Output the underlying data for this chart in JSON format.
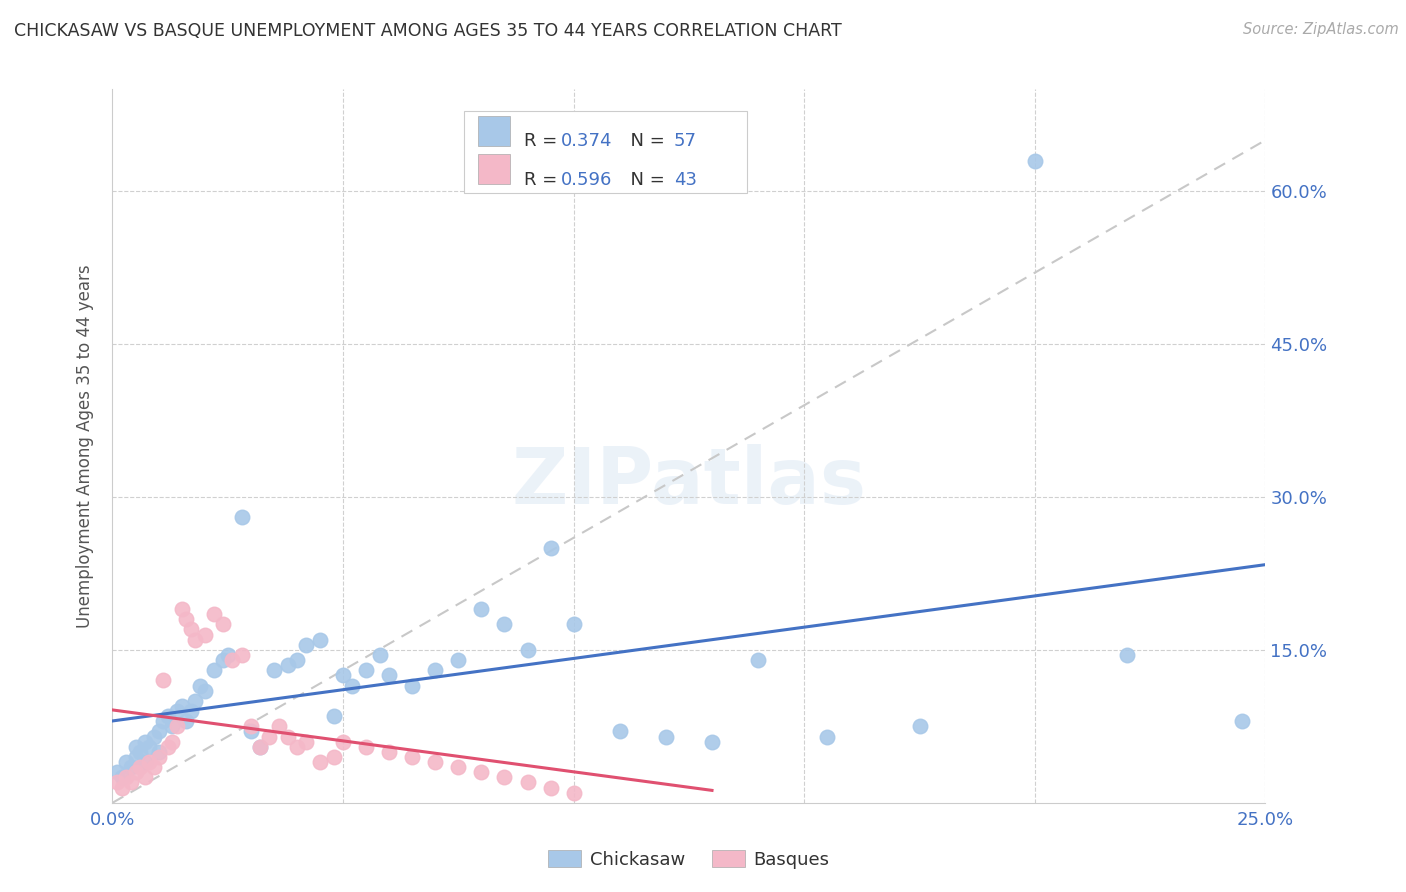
{
  "title": "CHICKASAW VS BASQUE UNEMPLOYMENT AMONG AGES 35 TO 44 YEARS CORRELATION CHART",
  "source": "Source: ZipAtlas.com",
  "ylabel": "Unemployment Among Ages 35 to 44 years",
  "xlim": [
    0.0,
    0.25
  ],
  "ylim": [
    0.0,
    0.7
  ],
  "xticks": [
    0.0,
    0.05,
    0.1,
    0.15,
    0.2,
    0.25
  ],
  "yticks": [
    0.0,
    0.15,
    0.3,
    0.45,
    0.6
  ],
  "ytick_labels": [
    "",
    "15.0%",
    "30.0%",
    "45.0%",
    "60.0%"
  ],
  "xtick_labels": [
    "0.0%",
    "",
    "",
    "",
    "",
    "25.0%"
  ],
  "chickasaw_color": "#a8c8e8",
  "basque_color": "#f4b8c8",
  "trendline_chickasaw_color": "#4472c4",
  "trendline_basque_color": "#e05070",
  "ref_line_color": "#c8c8c8",
  "watermark": "ZIPatlas",
  "legend_label1": "R = 0.374   N = 57",
  "legend_label2": "R = 0.596   N = 43",
  "chickasaw_x": [
    0.001,
    0.002,
    0.003,
    0.004,
    0.005,
    0.005,
    0.006,
    0.007,
    0.007,
    0.008,
    0.009,
    0.01,
    0.01,
    0.011,
    0.012,
    0.013,
    0.014,
    0.015,
    0.016,
    0.017,
    0.018,
    0.019,
    0.02,
    0.022,
    0.024,
    0.025,
    0.028,
    0.03,
    0.032,
    0.035,
    0.038,
    0.04,
    0.042,
    0.045,
    0.048,
    0.05,
    0.052,
    0.055,
    0.058,
    0.06,
    0.065,
    0.07,
    0.075,
    0.08,
    0.085,
    0.09,
    0.095,
    0.1,
    0.11,
    0.12,
    0.13,
    0.14,
    0.155,
    0.175,
    0.2,
    0.22,
    0.245
  ],
  "chickasaw_y": [
    0.03,
    0.025,
    0.04,
    0.035,
    0.045,
    0.055,
    0.05,
    0.04,
    0.06,
    0.055,
    0.065,
    0.07,
    0.05,
    0.08,
    0.085,
    0.075,
    0.09,
    0.095,
    0.08,
    0.09,
    0.1,
    0.115,
    0.11,
    0.13,
    0.14,
    0.145,
    0.28,
    0.07,
    0.055,
    0.13,
    0.135,
    0.14,
    0.155,
    0.16,
    0.085,
    0.125,
    0.115,
    0.13,
    0.145,
    0.125,
    0.115,
    0.13,
    0.14,
    0.19,
    0.175,
    0.15,
    0.25,
    0.175,
    0.07,
    0.065,
    0.06,
    0.14,
    0.065,
    0.075,
    0.63,
    0.145,
    0.08
  ],
  "basque_x": [
    0.001,
    0.002,
    0.003,
    0.004,
    0.005,
    0.006,
    0.007,
    0.008,
    0.009,
    0.01,
    0.011,
    0.012,
    0.013,
    0.014,
    0.015,
    0.016,
    0.017,
    0.018,
    0.02,
    0.022,
    0.024,
    0.026,
    0.028,
    0.03,
    0.032,
    0.034,
    0.036,
    0.038,
    0.04,
    0.042,
    0.045,
    0.048,
    0.05,
    0.055,
    0.06,
    0.065,
    0.07,
    0.075,
    0.08,
    0.085,
    0.09,
    0.095,
    0.1
  ],
  "basque_y": [
    0.02,
    0.015,
    0.025,
    0.02,
    0.03,
    0.035,
    0.025,
    0.04,
    0.035,
    0.045,
    0.12,
    0.055,
    0.06,
    0.075,
    0.19,
    0.18,
    0.17,
    0.16,
    0.165,
    0.185,
    0.175,
    0.14,
    0.145,
    0.075,
    0.055,
    0.065,
    0.075,
    0.065,
    0.055,
    0.06,
    0.04,
    0.045,
    0.06,
    0.055,
    0.05,
    0.045,
    0.04,
    0.035,
    0.03,
    0.025,
    0.02,
    0.015,
    0.01
  ]
}
